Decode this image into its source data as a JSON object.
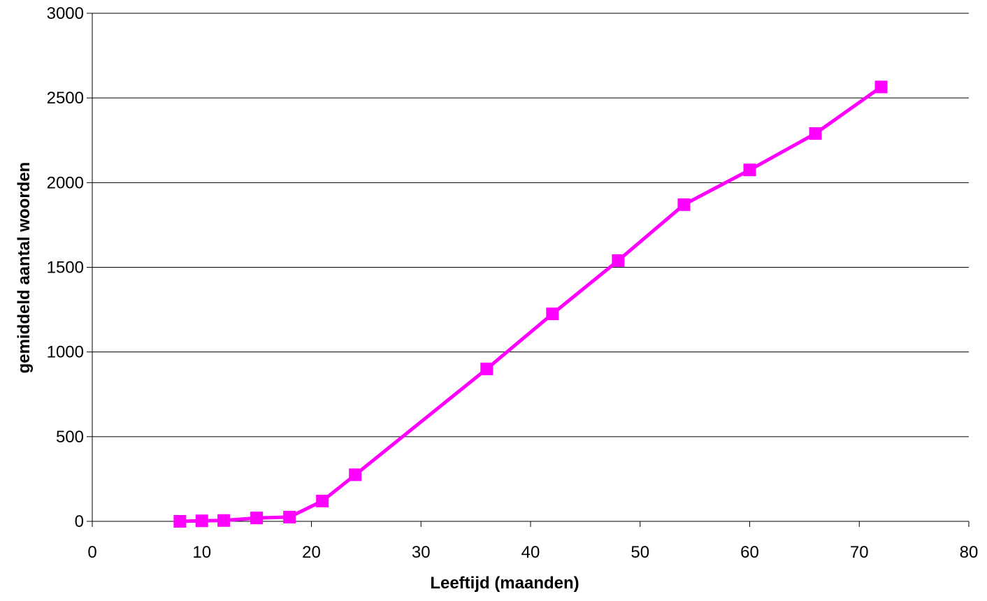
{
  "chart_data": {
    "type": "line",
    "title": "",
    "xlabel": "Leeftijd (maanden)",
    "ylabel": "gemiddeld aantal woorden",
    "xlim": [
      0,
      80
    ],
    "ylim": [
      0,
      3000
    ],
    "x_ticks": [
      0,
      10,
      20,
      30,
      40,
      50,
      60,
      70,
      80
    ],
    "y_ticks": [
      0,
      500,
      1000,
      1500,
      2000,
      2500,
      3000
    ],
    "grid": "horizontal",
    "legend": "none",
    "series": [
      {
        "color": "#ff00ff",
        "marker": "square",
        "x": [
          8,
          10,
          12,
          15,
          18,
          21,
          24,
          36,
          42,
          48,
          54,
          60,
          66,
          72
        ],
        "y": [
          0,
          3,
          5,
          20,
          25,
          120,
          275,
          900,
          1225,
          1540,
          1870,
          2075,
          2290,
          2565
        ]
      }
    ]
  }
}
